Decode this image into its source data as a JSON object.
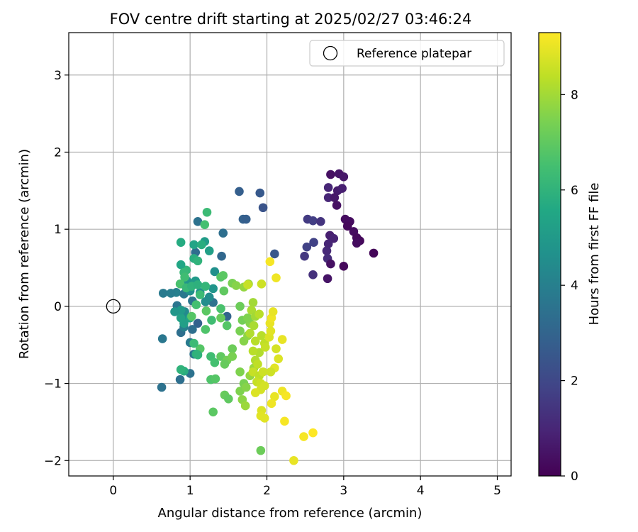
{
  "chart_data": {
    "type": "scatter",
    "title": "FOV centre drift starting at 2025/02/27 03:46:24",
    "xlabel": "Angular distance from reference (arcmin)",
    "ylabel": "Rotation from reference (arcmin)",
    "xlim": [
      -0.58,
      5.18
    ],
    "ylim": [
      -2.2,
      3.55
    ],
    "xticks": [
      0,
      1,
      2,
      3,
      4,
      5
    ],
    "yticks": [
      -2,
      -1,
      0,
      1,
      2,
      3
    ],
    "grid": true,
    "legend": {
      "placement": "upper right",
      "entries": [
        "Reference platepar"
      ]
    },
    "reference_point": {
      "x": 0,
      "y": 0,
      "label": "Reference platepar"
    },
    "colorbar": {
      "label": "Hours from first FF file",
      "colormap": "viridis",
      "range": [
        0,
        9.3
      ],
      "ticks": [
        0,
        2,
        4,
        6,
        8
      ]
    },
    "points": [
      [
        2.83,
        1.71,
        0.4
      ],
      [
        2.94,
        1.72,
        0.5
      ],
      [
        3.0,
        1.68,
        0.6
      ],
      [
        2.92,
        1.5,
        0.7
      ],
      [
        2.98,
        1.53,
        0.8
      ],
      [
        2.8,
        1.54,
        1.0
      ],
      [
        2.8,
        1.41,
        1.0
      ],
      [
        2.88,
        1.41,
        0.6
      ],
      [
        2.91,
        1.31,
        0.4
      ],
      [
        3.02,
        1.13,
        0.3
      ],
      [
        3.08,
        1.1,
        0.3
      ],
      [
        3.05,
        1.04,
        0.2
      ],
      [
        3.13,
        0.97,
        0.3
      ],
      [
        3.17,
        0.89,
        0.2
      ],
      [
        3.21,
        0.85,
        0.2
      ],
      [
        3.17,
        0.82,
        0.3
      ],
      [
        3.39,
        0.69,
        0.1
      ],
      [
        3.0,
        0.52,
        0.2
      ],
      [
        2.82,
        0.92,
        0.8
      ],
      [
        2.87,
        0.88,
        0.9
      ],
      [
        2.8,
        0.81,
        1.0
      ],
      [
        2.78,
        0.72,
        1.1
      ],
      [
        2.79,
        0.62,
        1.2
      ],
      [
        2.83,
        0.55,
        0.4
      ],
      [
        2.79,
        0.36,
        0.5
      ],
      [
        2.53,
        1.13,
        1.6
      ],
      [
        2.6,
        1.11,
        1.7
      ],
      [
        2.7,
        1.1,
        1.4
      ],
      [
        2.52,
        0.77,
        1.8
      ],
      [
        2.61,
        0.83,
        1.8
      ],
      [
        2.49,
        0.65,
        1.5
      ],
      [
        2.6,
        0.41,
        1.3
      ],
      [
        1.64,
        1.49,
        2.8
      ],
      [
        1.91,
        1.47,
        2.6
      ],
      [
        1.95,
        1.28,
        2.4
      ],
      [
        1.69,
        1.13,
        2.9
      ],
      [
        1.73,
        1.13,
        2.8
      ],
      [
        2.1,
        0.68,
        2.5
      ],
      [
        1.1,
        1.1,
        3.5
      ],
      [
        1.43,
        0.95,
        3.4
      ],
      [
        1.41,
        0.65,
        3.1
      ],
      [
        1.07,
        0.7,
        3.3
      ],
      [
        1.48,
        -0.13,
        3.0
      ],
      [
        1.1,
        -0.22,
        2.9
      ],
      [
        1.03,
        -0.3,
        3.4
      ],
      [
        1.3,
        0.05,
        3.5
      ],
      [
        1.03,
        0.07,
        3.6
      ],
      [
        0.65,
        0.17,
        3.8
      ],
      [
        0.82,
        0.18,
        4.0
      ],
      [
        0.75,
        0.17,
        3.9
      ],
      [
        0.92,
        0.16,
        3.7
      ],
      [
        0.83,
        0.01,
        3.6
      ],
      [
        0.88,
        -0.34,
        3.4
      ],
      [
        0.64,
        -0.42,
        3.7
      ],
      [
        0.63,
        -1.05,
        3.5
      ],
      [
        1.0,
        -0.87,
        3.5
      ],
      [
        0.87,
        -0.95,
        3.4
      ],
      [
        1.05,
        -0.62,
        3.6
      ],
      [
        1.0,
        -0.47,
        3.8
      ],
      [
        0.92,
        -0.27,
        4.0
      ],
      [
        0.97,
        -0.15,
        4.2
      ],
      [
        0.93,
        -0.07,
        4.4
      ],
      [
        1.2,
        0.06,
        4.5
      ],
      [
        1.0,
        0.2,
        4.6
      ],
      [
        1.13,
        0.18,
        4.7
      ],
      [
        1.25,
        0.12,
        4.5
      ],
      [
        1.32,
        0.45,
        4.6
      ],
      [
        1.3,
        0.23,
        4.8
      ],
      [
        0.96,
        0.33,
        4.8
      ],
      [
        1.07,
        0.33,
        5.0
      ],
      [
        1.25,
        0.72,
        5.2
      ],
      [
        1.19,
        0.84,
        5.1
      ],
      [
        1.05,
        0.8,
        5.4
      ],
      [
        0.88,
        0.83,
        5.7
      ],
      [
        1.15,
        0.8,
        5.8
      ],
      [
        1.05,
        0.62,
        5.8
      ],
      [
        1.1,
        0.59,
        6.0
      ],
      [
        0.95,
        0.47,
        6.1
      ],
      [
        1.22,
        1.22,
        6.3
      ],
      [
        1.19,
        1.06,
        6.5
      ],
      [
        0.88,
        0.54,
        5.5
      ],
      [
        0.92,
        0.44,
        6.2
      ],
      [
        0.93,
        0.38,
        6.4
      ],
      [
        0.87,
        0.29,
        6.6
      ],
      [
        0.95,
        0.24,
        6.2
      ],
      [
        1.02,
        0.26,
        6.0
      ],
      [
        1.1,
        0.28,
        5.9
      ],
      [
        1.2,
        0.26,
        6.1
      ],
      [
        1.13,
        0.15,
        6.3
      ],
      [
        1.08,
        0.02,
        6.5
      ],
      [
        1.0,
        -0.15,
        5.4
      ],
      [
        0.92,
        -0.22,
        5.2
      ],
      [
        0.88,
        -0.15,
        5.3
      ],
      [
        0.88,
        -0.05,
        5.0
      ],
      [
        0.8,
        -0.07,
        4.9
      ],
      [
        1.02,
        -0.13,
        6.8
      ],
      [
        1.21,
        -0.06,
        6.9
      ],
      [
        1.2,
        -0.3,
        6.7
      ],
      [
        1.13,
        -0.55,
        6.8
      ],
      [
        1.05,
        -0.48,
        6.3
      ],
      [
        1.08,
        -0.62,
        5.9
      ],
      [
        1.1,
        -0.63,
        6.0
      ],
      [
        0.92,
        -0.84,
        5.8
      ],
      [
        0.88,
        -0.82,
        6.0
      ],
      [
        1.27,
        -0.65,
        6.4
      ],
      [
        1.32,
        -0.73,
        6.5
      ],
      [
        1.27,
        -0.95,
        6.7
      ],
      [
        1.33,
        -0.94,
        6.8
      ],
      [
        1.28,
        -0.18,
        6.4
      ],
      [
        1.4,
        -0.03,
        6.6
      ],
      [
        1.48,
        -0.25,
        6.8
      ],
      [
        1.3,
        -1.37,
        6.9
      ],
      [
        1.45,
        -1.15,
        7.1
      ],
      [
        1.5,
        -1.2,
        7.0
      ],
      [
        1.55,
        -0.55,
        7.2
      ],
      [
        1.4,
        -0.65,
        7.0
      ],
      [
        1.48,
        -0.7,
        7.3
      ],
      [
        1.45,
        -0.75,
        7.1
      ],
      [
        1.55,
        -0.65,
        7.4
      ],
      [
        1.65,
        -1.1,
        7.5
      ],
      [
        1.65,
        -0.85,
        7.5
      ],
      [
        1.7,
        -1.0,
        7.4
      ],
      [
        1.73,
        -1.05,
        7.6
      ],
      [
        1.68,
        -1.21,
        7.7
      ],
      [
        1.72,
        -1.29,
        7.9
      ],
      [
        1.78,
        -0.9,
        7.8
      ],
      [
        1.83,
        -0.8,
        7.9
      ],
      [
        1.7,
        -0.45,
        7.6
      ],
      [
        1.75,
        -0.38,
        7.7
      ],
      [
        1.78,
        -0.22,
        7.6
      ],
      [
        1.65,
        -0.32,
        7.4
      ],
      [
        1.68,
        -0.18,
        7.3
      ],
      [
        1.75,
        -0.15,
        7.5
      ],
      [
        1.4,
        -0.15,
        7.1
      ],
      [
        1.44,
        0.2,
        7.0
      ],
      [
        1.4,
        0.38,
        6.8
      ],
      [
        1.43,
        0.4,
        6.9
      ],
      [
        1.55,
        0.3,
        7.4
      ],
      [
        1.6,
        0.27,
        7.6
      ],
      [
        1.7,
        0.25,
        7.8
      ],
      [
        1.76,
        0.29,
        7.9
      ],
      [
        1.65,
        0.0,
        7.2
      ],
      [
        1.82,
        0.05,
        8.0
      ],
      [
        1.8,
        -0.05,
        8.1
      ],
      [
        1.85,
        -0.13,
        8.0
      ],
      [
        1.9,
        -0.1,
        8.3
      ],
      [
        1.83,
        -0.25,
        8.1
      ],
      [
        1.78,
        -0.35,
        8.2
      ],
      [
        1.85,
        -0.45,
        8.3
      ],
      [
        1.9,
        -0.6,
        8.2
      ],
      [
        1.97,
        -0.48,
        8.4
      ],
      [
        1.93,
        -0.38,
        8.3
      ],
      [
        1.98,
        -0.53,
        8.5
      ],
      [
        1.82,
        -0.58,
        8.3
      ],
      [
        1.85,
        -0.7,
        8.2
      ],
      [
        1.88,
        -0.75,
        8.4
      ],
      [
        1.82,
        -0.85,
        8.5
      ],
      [
        1.9,
        -0.9,
        8.4
      ],
      [
        1.95,
        -0.85,
        8.6
      ],
      [
        1.87,
        -0.98,
        8.5
      ],
      [
        1.92,
        -1.0,
        8.6
      ],
      [
        1.97,
        -1.03,
        8.7
      ],
      [
        1.92,
        -1.08,
        8.7
      ],
      [
        1.85,
        -1.12,
        8.8
      ],
      [
        1.93,
        -1.35,
        8.8
      ],
      [
        1.92,
        -1.42,
        8.9
      ],
      [
        1.97,
        -1.45,
        8.9
      ],
      [
        1.92,
        -1.87,
        7.2
      ],
      [
        2.03,
        -0.4,
        8.8
      ],
      [
        2.04,
        -0.22,
        9.0
      ],
      [
        2.06,
        -0.15,
        9.1
      ],
      [
        2.08,
        -0.07,
        9.0
      ],
      [
        2.05,
        -0.32,
        8.9
      ],
      [
        2.12,
        -0.55,
        8.7
      ],
      [
        2.15,
        -0.68,
        8.8
      ],
      [
        2.1,
        -0.8,
        8.9
      ],
      [
        2.05,
        -0.85,
        8.6
      ],
      [
        2.2,
        -0.43,
        9.0
      ],
      [
        2.2,
        -1.1,
        9.1
      ],
      [
        2.25,
        -1.16,
        9.2
      ],
      [
        2.1,
        -1.17,
        9.0
      ],
      [
        2.06,
        -1.26,
        9.1
      ],
      [
        2.23,
        -1.49,
        9.2
      ],
      [
        2.35,
        -2.0,
        9.0
      ],
      [
        2.48,
        -1.69,
        9.2
      ],
      [
        2.6,
        -1.64,
        9.3
      ],
      [
        2.04,
        0.58,
        9.2
      ],
      [
        2.12,
        0.37,
        9.1
      ],
      [
        1.75,
        0.28,
        8.5
      ],
      [
        1.93,
        0.29,
        8.6
      ]
    ]
  }
}
